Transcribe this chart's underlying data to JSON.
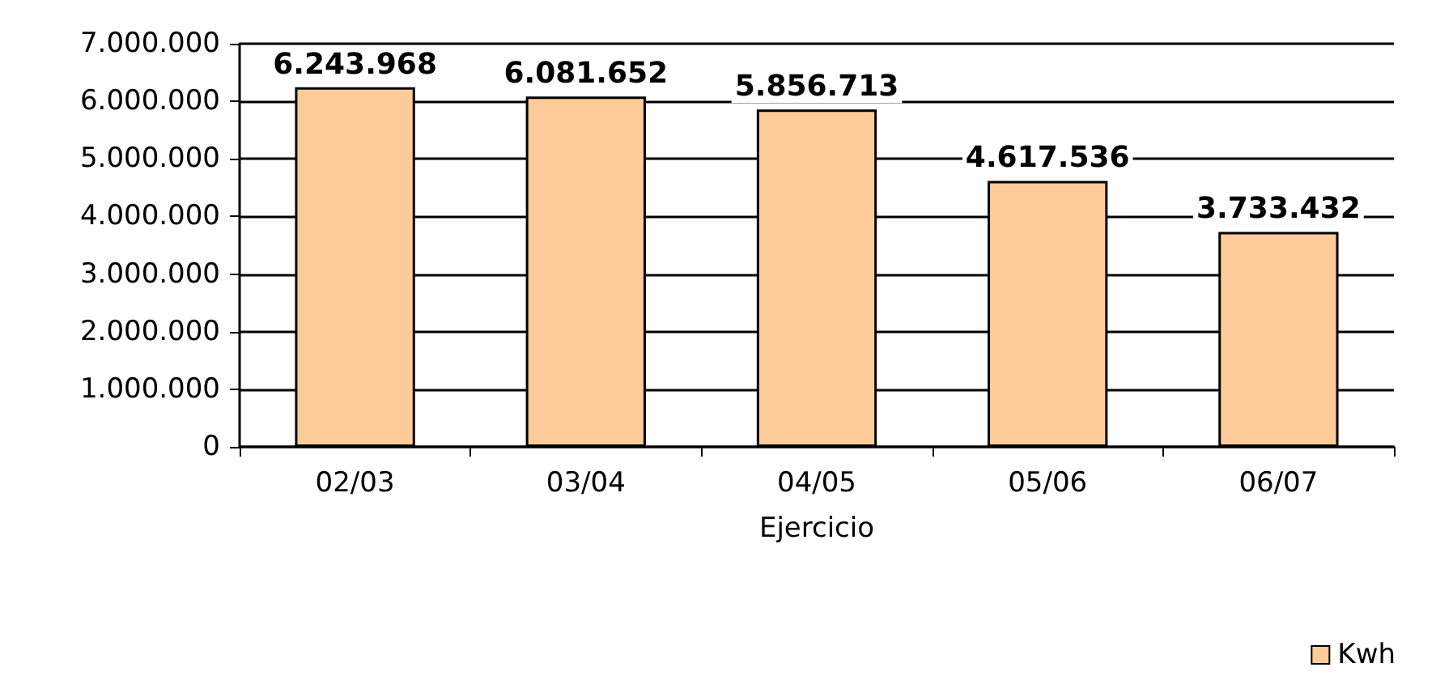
{
  "chart_data": {
    "type": "bar",
    "xlabel": "Ejercicio",
    "categories": [
      "02/03",
      "03/04",
      "04/05",
      "05/06",
      "06/07"
    ],
    "series": [
      {
        "name": "Kwh",
        "color": "#ffcc99",
        "values": [
          6243968,
          6081652,
          5856713,
          4617536,
          3733432
        ],
        "value_labels": [
          "6.243.968",
          "6.081.652",
          "5.856.713",
          "4.617.536",
          "3.733.432"
        ]
      }
    ],
    "ylim": [
      0,
      7000000
    ],
    "yticks": [
      0,
      {
        "value": 1000000,
        "label": "1.000.000"
      },
      {
        "value": 2000000,
        "label": "2.000.000"
      },
      {
        "value": 3000000,
        "label": "3.000.000"
      },
      {
        "value": 4000000,
        "label": "4.000.000"
      },
      {
        "value": 5000000,
        "label": "5.000.000"
      },
      {
        "value": 6000000,
        "label": "6.000.000"
      },
      {
        "value": 7000000,
        "label": "7.000.000"
      }
    ],
    "grid": "y",
    "legend": "bottom right"
  }
}
